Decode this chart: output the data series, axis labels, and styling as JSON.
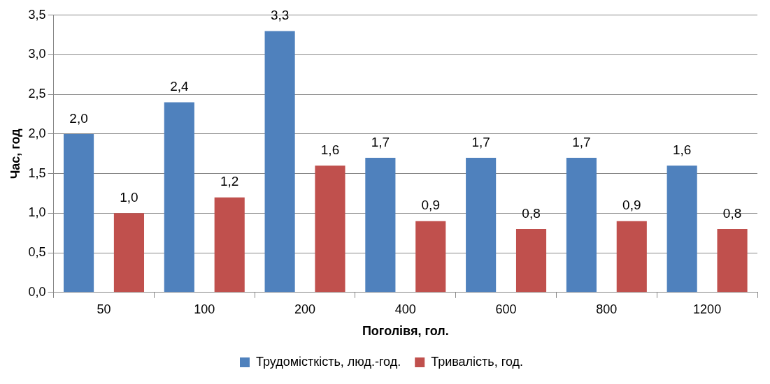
{
  "chart_data": {
    "type": "bar",
    "xlabel": "Поголівя, гол.",
    "ylabel": "Час, год",
    "categories": [
      "50",
      "100",
      "200",
      "400",
      "600",
      "800",
      "1200"
    ],
    "series": [
      {
        "name": "Трудомісткість, люд.-год.",
        "color": "#4f81bd",
        "values": [
          2.0,
          2.4,
          3.3,
          1.7,
          1.7,
          1.7,
          1.6
        ],
        "value_labels": [
          "2,0",
          "2,4",
          "3,3",
          "1,7",
          "1,7",
          "1,7",
          "1,6"
        ]
      },
      {
        "name": "Тривалість, год.",
        "color": "#c0504d",
        "values": [
          1.0,
          1.2,
          1.6,
          0.9,
          0.8,
          0.9,
          0.8
        ],
        "value_labels": [
          "1,0",
          "1,2",
          "1,6",
          "0,9",
          "0,8",
          "0,9",
          "0,8"
        ]
      }
    ],
    "ylim": [
      0,
      3.5
    ],
    "yticks": [
      {
        "value": 0,
        "label": "0,0"
      },
      {
        "value": 0.5,
        "label": "0,5"
      },
      {
        "value": 1,
        "label": "1,0"
      },
      {
        "value": 1.5,
        "label": "1,5"
      },
      {
        "value": 2,
        "label": "2,0"
      },
      {
        "value": 2.5,
        "label": "2,5"
      },
      {
        "value": 3,
        "label": "3,0"
      },
      {
        "value": 3.5,
        "label": "3,5"
      }
    ],
    "grid": "y",
    "legend": "bottom"
  }
}
